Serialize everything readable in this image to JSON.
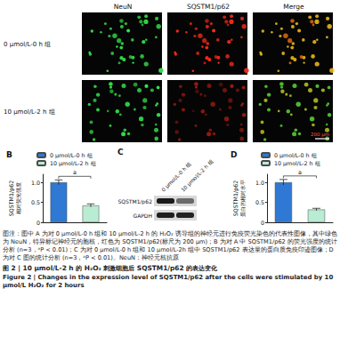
{
  "panel_a": {
    "columns": [
      "NeuN",
      "SQSTM1/p62",
      "Merge"
    ],
    "rows": [
      "0 μmol/L-0 h 组",
      "10 μmol/L-2 h 组"
    ],
    "scale_bar": "200 μm"
  },
  "chart_data": [
    {
      "type": "bar",
      "title": "B",
      "ylabel": "SQSTM1/p62 相对荧光强度",
      "categories": [
        null,
        null
      ],
      "series": [
        {
          "name": "0 μmol/L-0 h 组",
          "color": "#2f78d4",
          "values": [
            1.0,
            null
          ],
          "errors": [
            0.06,
            null
          ]
        },
        {
          "name": "10 μmol/L-2 h 组",
          "color": "#b9ecd3",
          "values": [
            null,
            0.42
          ],
          "errors": [
            null,
            0.04
          ]
        }
      ],
      "ylim": [
        0,
        1.2
      ],
      "yticks": [
        0,
        0.5,
        {
          "value": 1,
          "label": "1.0"
        }
      ],
      "annotations": [
        "a"
      ],
      "legend": "top",
      "grid": false
    },
    {
      "type": "bar",
      "title": "D",
      "ylabel": "SQSTM1/p62 蛋白的相对水平",
      "categories": [
        null,
        null
      ],
      "series": [
        {
          "name": "0 μmol/L-0 h 组",
          "color": "#2f78d4",
          "values": [
            1.0,
            null
          ],
          "errors": [
            0.07,
            null
          ]
        },
        {
          "name": "10 μmol/L-2 h 组",
          "color": "#b9ecd3",
          "values": [
            null,
            0.32
          ],
          "errors": [
            null,
            0.03
          ]
        }
      ],
      "ylim": [
        0,
        1.2
      ],
      "yticks": [
        0,
        0.5,
        {
          "value": 1,
          "label": "1.0"
        }
      ],
      "annotations": [
        "a"
      ],
      "legend": "top",
      "grid": false
    }
  ],
  "panel_c": {
    "title": "C",
    "lanes": [
      "0 μmol/L-0 h 组",
      "10 μmol/L-2 h 组"
    ],
    "bands": [
      "SQSTM1/p62",
      "GAPDH"
    ]
  },
  "caption": {
    "note": "图注：图中 A 为对 0 μmol/L-0 h 组和 10 μmol/L-2 h 的 H₂O₂ 诱导组的神经元进行免疫荧光染色的代表性图像，其中绿色为 NeuN，特异标记神经元的胞核，红色为 SQSTM1/p62(标尺为 200 μm)；B 为对 A 中 SQSTM1/p62 的荧光强度的统计分析 (n=3，ᵃP < 0.01)；C 为对 0 μmol/L-0 h 组和 10 μmol/L-2h 组中 SQSTM1/p62 表达量的蛋白质免疫印迹图像；D 为对 C 图的统计分析 (n=3，ᵃP < 0.01)。NeuN：神经元核抗原",
    "title_zh": "图 2 | 10 μmol/L-2 h 的 H₂O₂ 刺激细胞后 SQSTM1/p62 的表达变化",
    "title_en": "Figure 2 | Changes in the expression level of SQSTM1/p62 after the cells were stimulated by 10 μmol/L H₂O₂ for 2 hours"
  }
}
